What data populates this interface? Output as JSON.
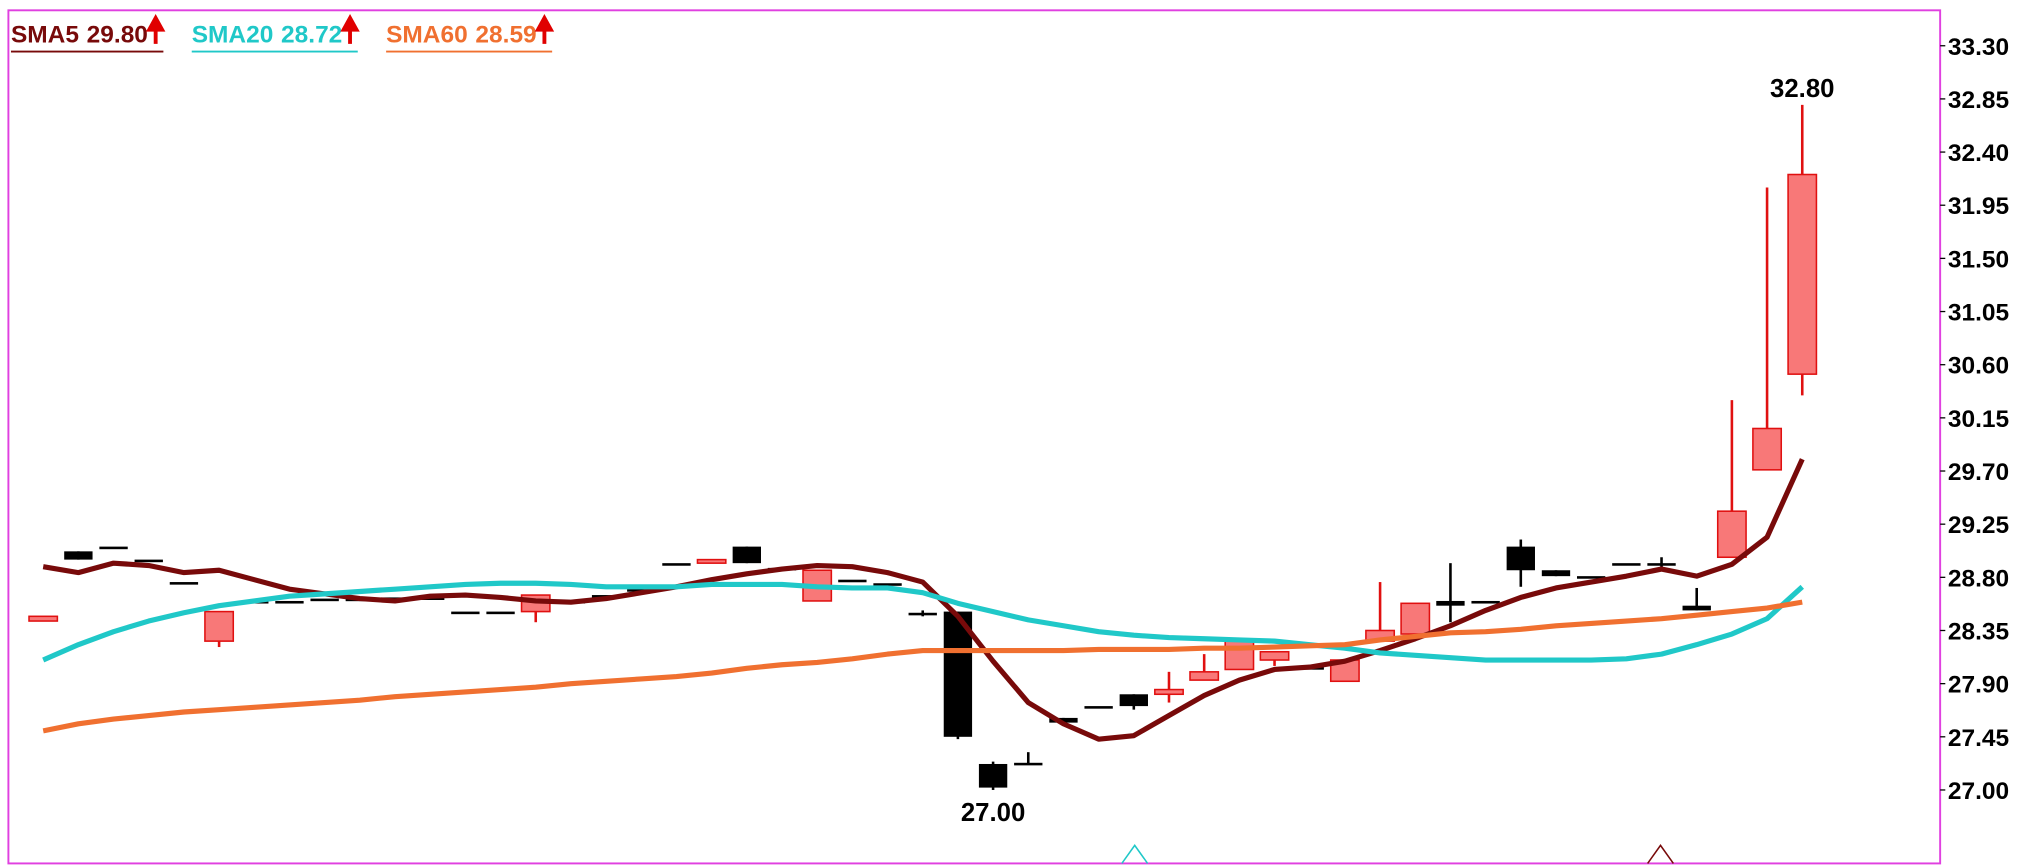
{
  "chart_data": {
    "type": "candlestick",
    "ylim": [
      26.4,
      33.6
    ],
    "yticks": [
      {
        "value": 27,
        "label": "27.00"
      },
      {
        "value": 27.45,
        "label": "27.45"
      },
      {
        "value": 27.9,
        "label": "27.90"
      },
      {
        "value": 28.35,
        "label": "28.35"
      },
      {
        "value": 28.8,
        "label": "28.80"
      },
      {
        "value": 29.25,
        "label": "29.25"
      },
      {
        "value": 29.7,
        "label": "29.70"
      },
      {
        "value": 30.15,
        "label": "30.15"
      },
      {
        "value": 30.6,
        "label": "30.60"
      },
      {
        "value": 31.05,
        "label": "31.05"
      },
      {
        "value": 31.5,
        "label": "31.50"
      },
      {
        "value": 31.95,
        "label": "31.95"
      },
      {
        "value": 32.4,
        "label": "32.40"
      },
      {
        "value": 32.85,
        "label": "32.85"
      },
      {
        "value": 33.3,
        "label": "33.30"
      }
    ],
    "up_color": "#f87878",
    "up_edge": "#e01010",
    "down_color": "#000000",
    "high_label": "32.80",
    "low_label": "27.00",
    "candles": [
      {
        "o": 28.43,
        "h": 28.47,
        "l": 28.43,
        "c": 28.47
      },
      {
        "o": 29.02,
        "h": 29.02,
        "l": 28.95,
        "c": 28.95
      },
      {
        "o": 29.06,
        "h": 29.06,
        "l": 29.06,
        "c": 29.06
      },
      {
        "o": 28.95,
        "h": 28.95,
        "l": 28.95,
        "c": 28.95
      },
      {
        "o": 28.76,
        "h": 28.76,
        "l": 28.76,
        "c": 28.76
      },
      {
        "o": 28.26,
        "h": 28.51,
        "l": 28.21,
        "c": 28.51
      },
      {
        "o": 28.6,
        "h": 28.6,
        "l": 28.6,
        "c": 28.6
      },
      {
        "o": 28.6,
        "h": 28.6,
        "l": 28.6,
        "c": 28.6
      },
      {
        "o": 28.62,
        "h": 28.62,
        "l": 28.62,
        "c": 28.62
      },
      {
        "o": 28.62,
        "h": 28.62,
        "l": 28.62,
        "c": 28.62
      },
      {
        "o": 28.63,
        "h": 28.63,
        "l": 28.63,
        "c": 28.63
      },
      {
        "o": 28.63,
        "h": 28.63,
        "l": 28.63,
        "c": 28.63
      },
      {
        "o": 28.51,
        "h": 28.51,
        "l": 28.51,
        "c": 28.51
      },
      {
        "o": 28.51,
        "h": 28.51,
        "l": 28.51,
        "c": 28.51
      },
      {
        "o": 28.51,
        "h": 28.65,
        "l": 28.42,
        "c": 28.65
      },
      {
        "o": 28.6,
        "h": 28.6,
        "l": 28.6,
        "c": 28.6
      },
      {
        "o": 28.65,
        "h": 28.65,
        "l": 28.65,
        "c": 28.65
      },
      {
        "o": 28.7,
        "h": 28.7,
        "l": 28.7,
        "c": 28.7
      },
      {
        "o": 28.92,
        "h": 28.92,
        "l": 28.92,
        "c": 28.92
      },
      {
        "o": 28.92,
        "h": 28.95,
        "l": 28.92,
        "c": 28.95
      },
      {
        "o": 29.06,
        "h": 29.06,
        "l": 28.92,
        "c": 28.92
      },
      {
        "o": 28.88,
        "h": 28.88,
        "l": 28.88,
        "c": 28.88
      },
      {
        "o": 28.6,
        "h": 28.86,
        "l": 28.6,
        "c": 28.86
      },
      {
        "o": 28.78,
        "h": 28.78,
        "l": 28.78,
        "c": 28.78
      },
      {
        "o": 28.75,
        "h": 28.75,
        "l": 28.75,
        "c": 28.75
      },
      {
        "o": 28.5,
        "h": 28.52,
        "l": 28.47,
        "c": 28.5
      },
      {
        "o": 28.51,
        "h": 28.51,
        "l": 27.43,
        "c": 27.45
      },
      {
        "o": 27.22,
        "h": 27.24,
        "l": 27.0,
        "c": 27.02
      },
      {
        "o": 27.23,
        "h": 27.32,
        "l": 27.22,
        "c": 27.23
      },
      {
        "o": 27.61,
        "h": 27.61,
        "l": 27.57,
        "c": 27.57
      },
      {
        "o": 27.71,
        "h": 27.71,
        "l": 27.71,
        "c": 27.71
      },
      {
        "o": 27.81,
        "h": 27.81,
        "l": 27.68,
        "c": 27.71
      },
      {
        "o": 27.81,
        "h": 28.0,
        "l": 27.74,
        "c": 27.85
      },
      {
        "o": 27.93,
        "h": 28.15,
        "l": 27.93,
        "c": 28.0
      },
      {
        "o": 28.02,
        "h": 28.26,
        "l": 28.02,
        "c": 28.26
      },
      {
        "o": 28.1,
        "h": 28.17,
        "l": 28.05,
        "c": 28.17
      },
      {
        "o": 28.04,
        "h": 28.04,
        "l": 28.04,
        "c": 28.04
      },
      {
        "o": 27.92,
        "h": 28.1,
        "l": 27.92,
        "c": 28.1
      },
      {
        "o": 28.26,
        "h": 28.76,
        "l": 28.26,
        "c": 28.35
      },
      {
        "o": 28.32,
        "h": 28.58,
        "l": 28.32,
        "c": 28.58
      },
      {
        "o": 28.6,
        "h": 28.92,
        "l": 28.42,
        "c": 28.56
      },
      {
        "o": 28.6,
        "h": 28.6,
        "l": 28.6,
        "c": 28.6
      },
      {
        "o": 29.06,
        "h": 29.12,
        "l": 28.72,
        "c": 28.86
      },
      {
        "o": 28.86,
        "h": 28.86,
        "l": 28.81,
        "c": 28.81
      },
      {
        "o": 28.81,
        "h": 28.81,
        "l": 28.81,
        "c": 28.81
      },
      {
        "o": 28.92,
        "h": 28.92,
        "l": 28.92,
        "c": 28.92
      },
      {
        "o": 28.92,
        "h": 28.97,
        "l": 28.88,
        "c": 28.92
      },
      {
        "o": 28.56,
        "h": 28.71,
        "l": 28.52,
        "c": 28.52
      },
      {
        "o": 28.97,
        "h": 30.3,
        "l": 28.97,
        "c": 29.36
      },
      {
        "o": 29.71,
        "h": 32.1,
        "l": 29.71,
        "c": 30.06
      },
      {
        "o": 30.52,
        "h": 32.8,
        "l": 30.34,
        "c": 32.21
      }
    ],
    "series": [
      {
        "name": "SMA5",
        "legend_value": "29.80",
        "color": "#780a0a",
        "values": [
          28.89,
          28.84,
          28.92,
          28.9,
          28.84,
          28.86,
          28.78,
          28.7,
          28.66,
          28.62,
          28.6,
          28.64,
          28.65,
          28.63,
          28.6,
          28.59,
          28.62,
          28.67,
          28.72,
          28.78,
          28.83,
          28.87,
          28.9,
          28.89,
          28.84,
          28.76,
          28.47,
          28.09,
          27.74,
          27.56,
          27.43,
          27.46,
          27.63,
          27.8,
          27.93,
          28.02,
          28.04,
          28.09,
          28.18,
          28.28,
          28.39,
          28.52,
          28.63,
          28.71,
          28.76,
          28.81,
          28.87,
          28.81,
          28.91,
          29.14,
          29.8
        ]
      },
      {
        "name": "SMA20",
        "legend_value": "28.72",
        "color": "#20c8c8",
        "values": [
          28.1,
          28.23,
          28.34,
          28.43,
          28.5,
          28.56,
          28.6,
          28.64,
          28.66,
          28.68,
          28.7,
          28.72,
          28.74,
          28.75,
          28.75,
          28.74,
          28.72,
          28.72,
          28.72,
          28.74,
          28.74,
          28.74,
          28.72,
          28.71,
          28.71,
          28.67,
          28.58,
          28.51,
          28.44,
          28.39,
          28.34,
          28.31,
          28.29,
          28.28,
          28.27,
          28.26,
          28.23,
          28.2,
          28.16,
          28.14,
          28.12,
          28.1,
          28.1,
          28.1,
          28.1,
          28.11,
          28.15,
          28.23,
          28.32,
          28.45,
          28.72
        ]
      },
      {
        "name": "SMA60",
        "legend_value": "28.59",
        "color": "#f07030",
        "values": [
          27.5,
          27.56,
          27.6,
          27.63,
          27.66,
          27.68,
          27.7,
          27.72,
          27.74,
          27.76,
          27.79,
          27.81,
          27.83,
          27.85,
          27.87,
          27.9,
          27.92,
          27.94,
          27.96,
          27.99,
          28.03,
          28.06,
          28.08,
          28.11,
          28.15,
          28.18,
          28.18,
          28.18,
          28.18,
          28.18,
          28.19,
          28.19,
          28.19,
          28.2,
          28.2,
          28.21,
          28.22,
          28.23,
          28.27,
          28.3,
          28.33,
          28.34,
          28.36,
          28.39,
          28.41,
          28.43,
          28.45,
          28.48,
          28.51,
          28.54,
          28.59
        ]
      }
    ]
  }
}
